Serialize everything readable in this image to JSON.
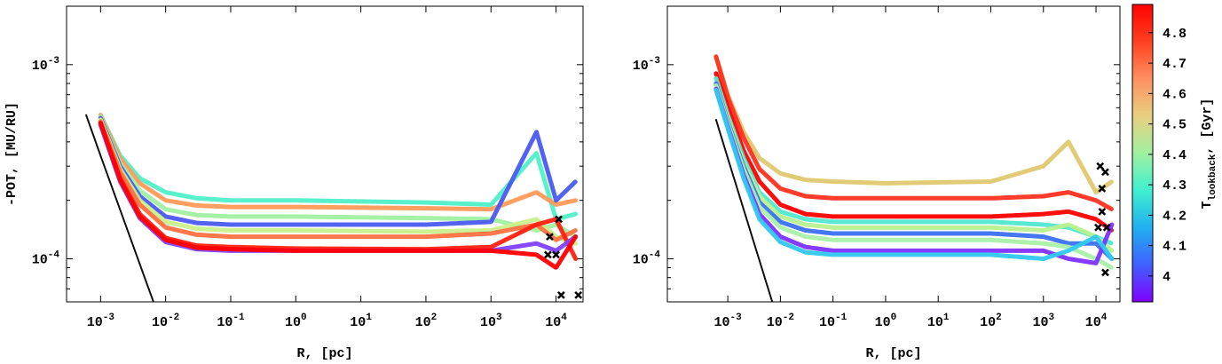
{
  "chart_data": [
    {
      "type": "line",
      "log_x": true,
      "log_y": true,
      "x_label": "R, [pc]",
      "y_label": "-POT, [MU/RU]",
      "xlim": [
        0.0003,
        26000
      ],
      "ylim": [
        6e-05,
        0.002
      ],
      "xticks": [
        {
          "value": 0.001,
          "label": "10-3"
        },
        {
          "value": 0.01,
          "label": "10-2"
        },
        {
          "value": 0.1,
          "label": "10-1"
        },
        {
          "value": 1,
          "label": "100"
        },
        {
          "value": 10,
          "label": "101"
        },
        {
          "value": 100,
          "label": "102"
        },
        {
          "value": 1000,
          "label": "103"
        },
        {
          "value": 10000,
          "label": "104"
        }
      ],
      "yticks": [
        {
          "value": 0.0001,
          "label": "10-4"
        },
        {
          "value": 0.001,
          "label": "10-3"
        }
      ],
      "yminor_ticks": [
        6e-05,
        7e-05,
        8e-05,
        9e-05,
        0.0002,
        0.0003,
        0.0004,
        0.0005,
        0.0006,
        0.0007,
        0.0008,
        0.0009,
        0.002
      ],
      "x": [
        0.001,
        0.002,
        0.004,
        0.01,
        0.03,
        0.1,
        1,
        100,
        1000,
        5000,
        10000,
        20000
      ],
      "series": [
        {
          "color": "#4ff0c8",
          "values": [
            0.00055,
            0.00034,
            0.00026,
            0.00022,
            0.000205,
            0.0002,
            0.0002,
            0.000195,
            0.00019,
            0.00035,
            0.00016,
            0.00017
          ]
        },
        {
          "color": "#ff9a5a",
          "values": [
            0.00055,
            0.00033,
            0.000245,
            0.0002,
            0.000188,
            0.000185,
            0.000185,
            0.000182,
            0.00018,
            0.00022,
            0.00019,
            0.0002
          ]
        },
        {
          "color": "#a0f0a0",
          "values": [
            0.00054,
            0.00031,
            0.000225,
            0.00018,
            0.000168,
            0.000165,
            0.000165,
            0.000162,
            0.00016,
            0.00014,
            0.00015,
            0.00013
          ]
        },
        {
          "color": "#4a5af0",
          "values": [
            0.00053,
            0.0003,
            0.00021,
            0.000165,
            0.000153,
            0.00015,
            0.00015,
            0.00015,
            0.000155,
            0.00045,
            0.0002,
            0.00025
          ]
        },
        {
          "color": "#c8f08c",
          "values": [
            0.00052,
            0.00029,
            0.0002,
            0.000155,
            0.000143,
            0.00014,
            0.00014,
            0.000138,
            0.00014,
            0.00016,
            0.00013,
            0.00012
          ]
        },
        {
          "color": "#ff7040",
          "values": [
            0.00051,
            0.00028,
            0.00019,
            0.000145,
            0.000133,
            0.00013,
            0.00013,
            0.00013,
            0.000135,
            0.00015,
            0.000125,
            0.00014
          ]
        },
        {
          "color": "#ff2010",
          "values": [
            0.0005,
            0.00026,
            0.00017,
            0.000128,
            0.000117,
            0.000115,
            0.000113,
            0.000112,
            0.000115,
            0.00015,
            0.00016,
            0.0001
          ]
        },
        {
          "color": "#8040ff",
          "values": [
            0.00049,
            0.00025,
            0.000162,
            0.000122,
            0.000112,
            0.00011,
            0.00011,
            0.00011,
            0.00011,
            0.00012,
            0.00011,
            0.00013
          ]
        },
        {
          "color": "#ff0000",
          "values": [
            0.0005,
            0.000255,
            0.000165,
            0.000125,
            0.000114,
            0.000112,
            0.00011,
            0.00011,
            0.00011,
            0.000105,
            9e-05,
            0.00013
          ]
        },
        {
          "color": "#000000",
          "x": [
            0.0006,
            0.001,
            0.0065
          ],
          "values": [
            0.00055,
            0.00034,
            6e-05
          ]
        },
        {
          "color": "#000000",
          "marker": "x",
          "x": [
            8000,
            10000,
            11000,
            7500,
            12000,
            22000
          ],
          "values": [
            0.00013,
            0.000105,
            0.00016,
            0.000105,
            6.5e-05,
            6.5e-05
          ]
        }
      ]
    },
    {
      "type": "line",
      "log_x": true,
      "log_y": true,
      "x_label": "R, [pc]",
      "xlim": [
        7.1e-05,
        28500
      ],
      "ylim": [
        6e-05,
        0.002
      ],
      "xticks": [
        {
          "value": 0.001,
          "label": "10-3"
        },
        {
          "value": 0.01,
          "label": "10-2"
        },
        {
          "value": 0.1,
          "label": "10-1"
        },
        {
          "value": 1,
          "label": "100"
        },
        {
          "value": 10,
          "label": "101"
        },
        {
          "value": 100,
          "label": "102"
        },
        {
          "value": 1000,
          "label": "103"
        },
        {
          "value": 10000,
          "label": "104"
        }
      ],
      "yticks": [
        {
          "value": 0.0001,
          "label": "10-4"
        },
        {
          "value": 0.001,
          "label": "10-3"
        }
      ],
      "yminor_ticks": [
        6e-05,
        7e-05,
        8e-05,
        9e-05,
        0.0002,
        0.0003,
        0.0004,
        0.0005,
        0.0006,
        0.0007,
        0.0008,
        0.0009,
        0.002
      ],
      "x": [
        0.0006,
        0.001,
        0.002,
        0.004,
        0.01,
        0.03,
        0.1,
        1,
        100,
        1000,
        3000,
        10000,
        20000
      ],
      "series": [
        {
          "color": "#e0c870",
          "values": [
            0.0011,
            0.0007,
            0.00045,
            0.00033,
            0.000275,
            0.000255,
            0.00025,
            0.000245,
            0.00025,
            0.0003,
            0.0004,
            0.00022,
            0.00025
          ]
        },
        {
          "color": "#ff3020",
          "values": [
            0.0011,
            0.00068,
            0.00042,
            0.00029,
            0.00023,
            0.00021,
            0.000205,
            0.000205,
            0.000205,
            0.00021,
            0.00022,
            0.0002,
            0.00018
          ]
        },
        {
          "color": "#ff0000",
          "values": [
            0.0009,
            0.0006,
            0.00036,
            0.00025,
            0.00019,
            0.00017,
            0.000165,
            0.000165,
            0.000165,
            0.00017,
            0.000175,
            0.00016,
            0.00014
          ]
        },
        {
          "color": "#50e8d0",
          "values": [
            0.00085,
            0.00055,
            0.00033,
            0.00022,
            0.000175,
            0.00016,
            0.000155,
            0.000155,
            0.000155,
            0.00015,
            0.000145,
            0.00013,
            0.00012
          ]
        },
        {
          "color": "#b8f090",
          "values": [
            0.0008,
            0.00053,
            0.00031,
            0.00021,
            0.000165,
            0.00015,
            0.000145,
            0.000145,
            0.000145,
            0.00014,
            0.00015,
            0.00013,
            0.00011
          ]
        },
        {
          "color": "#3a70f0",
          "values": [
            0.0008,
            0.00051,
            0.0003,
            0.000195,
            0.000155,
            0.00014,
            0.000135,
            0.000135,
            0.000135,
            0.00013,
            0.00012,
            0.00012,
            0.0001
          ]
        },
        {
          "color": "#a8f0a8",
          "values": [
            0.00078,
            0.0005,
            0.00029,
            0.000185,
            0.000145,
            0.00013,
            0.000125,
            0.000125,
            0.000125,
            0.00012,
            0.000115,
            0.0001,
            9e-05
          ]
        },
        {
          "color": "#8030ff",
          "values": [
            0.00075,
            0.00048,
            0.00027,
            0.00017,
            0.00013,
            0.000115,
            0.00011,
            0.00011,
            0.00011,
            0.00011,
            0.0001,
            9.5e-05,
            0.00015
          ]
        },
        {
          "color": "#30c8f0",
          "values": [
            0.00074,
            0.00047,
            0.00026,
            0.00016,
            0.000122,
            0.000108,
            0.000105,
            0.000105,
            0.000105,
            0.0001,
            0.00011,
            0.00013,
            0.0001
          ]
        },
        {
          "color": "#000000",
          "x": [
            0.0006,
            0.001,
            0.007
          ],
          "values": [
            0.00052,
            0.00033,
            6e-05
          ]
        },
        {
          "color": "#000000",
          "marker": "x",
          "x": [
            12000,
            15000,
            13000,
            13000,
            11000,
            16000,
            15000
          ],
          "values": [
            0.0003,
            0.00028,
            0.00023,
            0.000175,
            0.000145,
            0.000145,
            8.5e-05
          ]
        }
      ]
    },
    {
      "type": "colorbar",
      "label_main": "T",
      "label_subscript": "lookback",
      "label_tail": ", [Gyr]",
      "lim": [
        3.915,
        4.893
      ],
      "ticks": [
        4,
        4.1,
        4.2,
        4.3,
        4.4,
        4.5,
        4.6,
        4.7,
        4.8
      ],
      "colors": [
        "#8000ff",
        "#4060ff",
        "#20b0f0",
        "#40f0d0",
        "#a0f0a0",
        "#e8d080",
        "#ff9060",
        "#ff4020",
        "#ff0000"
      ]
    }
  ]
}
